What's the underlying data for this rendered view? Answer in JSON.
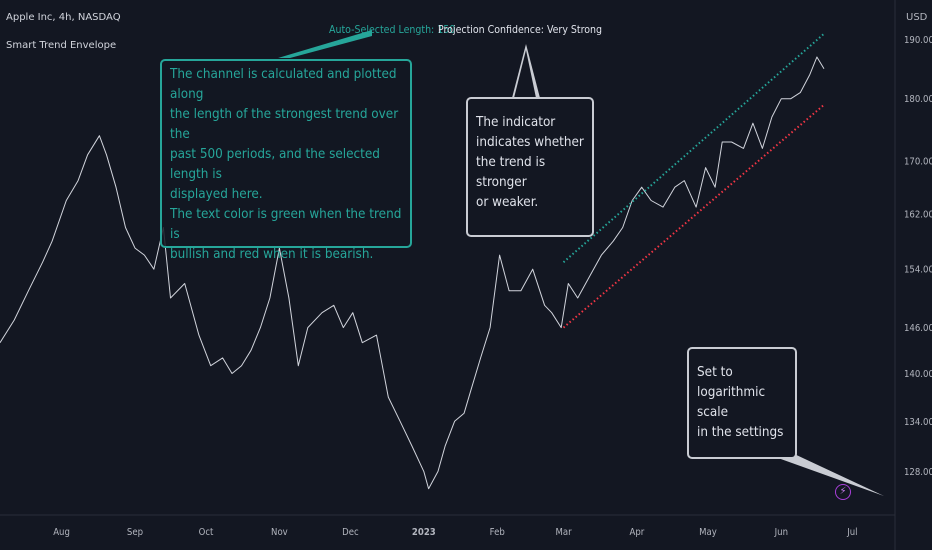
{
  "header": {
    "symbol": "Apple Inc, 4h, NASDAQ",
    "indicator": "Smart Trend Envelope",
    "currency": "USD"
  },
  "labels": {
    "length": "Auto-Selected Length: 150",
    "confidence": "Projection Confidence: Very Strong"
  },
  "notes": {
    "channel": [
      "The channel is calculated and plotted along",
      "the length of the strongest trend over the",
      "past 500 periods, and the selected length is",
      "displayed here.",
      "The text color is green when the trend is",
      "bullish and red when it is bearish."
    ],
    "trend": [
      "The indicator",
      "indicates whether",
      "the trend is stronger",
      "or weaker."
    ],
    "log": [
      "Set to",
      "logarithmic scale",
      "in the settings"
    ]
  },
  "colors": {
    "background": "#131722",
    "price_line": "#d1d4dc",
    "upper_band": "#26a69a",
    "lower_band": "#f23645",
    "note_green": "#26a69a"
  },
  "icons": {
    "bolt": "lightning-icon"
  },
  "chart_data": {
    "type": "line",
    "title": "Apple Inc, 4h, NASDAQ",
    "log_scale": true,
    "y_ticks": [
      128,
      134,
      140,
      146,
      154,
      162,
      170,
      180,
      190
    ],
    "ylim": [
      123,
      197
    ],
    "x_ticks": [
      "Aug",
      "Sep",
      "Oct",
      "Nov",
      "Dec",
      "2023",
      "Feb",
      "Mar",
      "Apr",
      "May",
      "Jun",
      "Jul"
    ],
    "x_tick_dates": [
      "2022-08-01",
      "2022-09-01",
      "2022-10-01",
      "2022-11-01",
      "2022-12-01",
      "2023-01-01",
      "2023-02-01",
      "2023-03-01",
      "2023-04-01",
      "2023-05-01",
      "2023-06-01",
      "2023-07-01"
    ],
    "xlim": [
      "2022-07-06",
      "2023-07-19"
    ],
    "grid": false,
    "series": [
      {
        "name": "",
        "kind": "price",
        "points": [
          [
            "2022-07-06",
            144
          ],
          [
            "2022-07-12",
            147
          ],
          [
            "2022-07-18",
            151
          ],
          [
            "2022-07-24",
            155
          ],
          [
            "2022-07-28",
            158
          ],
          [
            "2022-08-03",
            164
          ],
          [
            "2022-08-08",
            167
          ],
          [
            "2022-08-12",
            171
          ],
          [
            "2022-08-17",
            174
          ],
          [
            "2022-08-20",
            171
          ],
          [
            "2022-08-24",
            166
          ],
          [
            "2022-08-28",
            160
          ],
          [
            "2022-09-01",
            157
          ],
          [
            "2022-09-05",
            156
          ],
          [
            "2022-09-09",
            154
          ],
          [
            "2022-09-13",
            160
          ],
          [
            "2022-09-16",
            150
          ],
          [
            "2022-09-22",
            152
          ],
          [
            "2022-09-28",
            145
          ],
          [
            "2022-10-03",
            141
          ],
          [
            "2022-10-08",
            142
          ],
          [
            "2022-10-12",
            140
          ],
          [
            "2022-10-16",
            141
          ],
          [
            "2022-10-20",
            143
          ],
          [
            "2022-10-24",
            146
          ],
          [
            "2022-10-28",
            150
          ],
          [
            "2022-11-01",
            157
          ],
          [
            "2022-11-05",
            150
          ],
          [
            "2022-11-09",
            141
          ],
          [
            "2022-11-13",
            146
          ],
          [
            "2022-11-19",
            148
          ],
          [
            "2022-11-24",
            149
          ],
          [
            "2022-11-28",
            146
          ],
          [
            "2022-12-02",
            148
          ],
          [
            "2022-12-06",
            144
          ],
          [
            "2022-12-12",
            145
          ],
          [
            "2022-12-17",
            137
          ],
          [
            "2022-12-22",
            134
          ],
          [
            "2022-12-27",
            131
          ],
          [
            "2023-01-01",
            128
          ],
          [
            "2023-01-03",
            126
          ],
          [
            "2023-01-07",
            128
          ],
          [
            "2023-01-10",
            131
          ],
          [
            "2023-01-14",
            134
          ],
          [
            "2023-01-18",
            135
          ],
          [
            "2023-01-21",
            138
          ],
          [
            "2023-01-25",
            142
          ],
          [
            "2023-01-29",
            146
          ],
          [
            "2023-02-02",
            156
          ],
          [
            "2023-02-06",
            151
          ],
          [
            "2023-02-11",
            151
          ],
          [
            "2023-02-16",
            154
          ],
          [
            "2023-02-21",
            149
          ],
          [
            "2023-02-24",
            148
          ],
          [
            "2023-02-28",
            146
          ],
          [
            "2023-03-03",
            152
          ],
          [
            "2023-03-07",
            150
          ],
          [
            "2023-03-12",
            153
          ],
          [
            "2023-03-17",
            156
          ],
          [
            "2023-03-22",
            158
          ],
          [
            "2023-03-26",
            160
          ],
          [
            "2023-03-30",
            164
          ],
          [
            "2023-04-03",
            166
          ],
          [
            "2023-04-07",
            164
          ],
          [
            "2023-04-12",
            163
          ],
          [
            "2023-04-17",
            166
          ],
          [
            "2023-04-21",
            167
          ],
          [
            "2023-04-26",
            163
          ],
          [
            "2023-04-30",
            169
          ],
          [
            "2023-05-04",
            166
          ],
          [
            "2023-05-07",
            173
          ],
          [
            "2023-05-11",
            173
          ],
          [
            "2023-05-16",
            172
          ],
          [
            "2023-05-20",
            176
          ],
          [
            "2023-05-24",
            172
          ],
          [
            "2023-05-28",
            177
          ],
          [
            "2023-06-01",
            180
          ],
          [
            "2023-06-05",
            180
          ],
          [
            "2023-06-09",
            181
          ],
          [
            "2023-06-13",
            184
          ],
          [
            "2023-06-16",
            187
          ],
          [
            "2023-06-19",
            185
          ]
        ]
      },
      {
        "name": "",
        "kind": "upper_band",
        "points": [
          [
            "2023-03-01",
            155
          ],
          [
            "2023-06-19",
            191
          ]
        ]
      },
      {
        "name": "",
        "kind": "lower_band",
        "points": [
          [
            "2023-03-01",
            146
          ],
          [
            "2023-06-19",
            179
          ]
        ]
      }
    ]
  }
}
